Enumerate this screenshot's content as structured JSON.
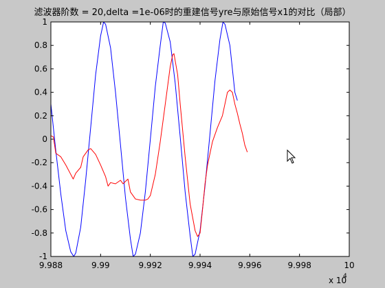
{
  "chart_data": {
    "type": "line",
    "title": "滤波器阶数 = 20,delta =1e-06时的重建信号yre与原始信号x1的对比（局部）",
    "xlabel": "",
    "ylabel": "",
    "xlim": [
      99880,
      100000
    ],
    "ylim": [
      -1,
      1
    ],
    "x_ticks": [
      99880,
      99900,
      99920,
      99940,
      99960,
      99980,
      100000
    ],
    "x_tick_labels": [
      "9.988",
      "9.99",
      "9.992",
      "9.994",
      "9.996",
      "9.998",
      "10"
    ],
    "x_exponent_label": "x 10",
    "x_exponent_power": "4",
    "y_ticks": [
      1,
      0.8,
      0.6,
      0.4,
      0.2,
      0,
      -0.2,
      -0.4,
      -0.6,
      -0.8,
      -1
    ],
    "y_tick_labels": [
      "1",
      "0.8",
      "0.6",
      "0.4",
      "0.2",
      "0",
      "-0.2",
      "-0.4",
      "-0.6",
      "-0.8",
      "-1"
    ],
    "grid": false,
    "series": [
      {
        "color": "#0000ff",
        "points": [
          [
            99880,
            0.3
          ],
          [
            99882,
            -0.1
          ],
          [
            99884,
            -0.47
          ],
          [
            99886,
            -0.78
          ],
          [
            99888,
            -0.96
          ],
          [
            99889.2,
            -1.0
          ],
          [
            99890,
            -0.97
          ],
          [
            99892,
            -0.75
          ],
          [
            99894,
            -0.35
          ],
          [
            99896,
            0.1
          ],
          [
            99898,
            0.55
          ],
          [
            99900,
            0.88
          ],
          [
            99901.2,
            1.0
          ],
          [
            99902,
            0.98
          ],
          [
            99904,
            0.78
          ],
          [
            99906,
            0.4
          ],
          [
            99908,
            -0.05
          ],
          [
            99910,
            -0.5
          ],
          [
            99912,
            -0.85
          ],
          [
            99913.1,
            -1.0
          ],
          [
            99914,
            -0.98
          ],
          [
            99916,
            -0.8
          ],
          [
            99918,
            -0.45
          ],
          [
            99920,
            0.0
          ],
          [
            99922,
            0.45
          ],
          [
            99924,
            0.8
          ],
          [
            99925.2,
            1.0
          ],
          [
            99926,
            0.99
          ],
          [
            99928,
            0.83
          ],
          [
            99930,
            0.48
          ],
          [
            99932,
            0.02
          ],
          [
            99934,
            -0.45
          ],
          [
            99936,
            -0.82
          ],
          [
            99937.1,
            -1.0
          ],
          [
            99938,
            -0.98
          ],
          [
            99940,
            -0.78
          ],
          [
            99942,
            -0.4
          ],
          [
            99944,
            0.05
          ],
          [
            99946,
            0.5
          ],
          [
            99948,
            0.85
          ],
          [
            99949.2,
            1.0
          ],
          [
            99950,
            0.98
          ],
          [
            99952,
            0.8
          ],
          [
            99954,
            0.4
          ],
          [
            99955,
            0.33
          ]
        ]
      },
      {
        "color": "#ff0000",
        "points": [
          [
            99880,
            0.03
          ],
          [
            99881,
            0.02
          ],
          [
            99882,
            -0.12
          ],
          [
            99884,
            -0.15
          ],
          [
            99886,
            -0.22
          ],
          [
            99888,
            -0.3
          ],
          [
            99889,
            -0.34
          ],
          [
            99890,
            -0.29
          ],
          [
            99892,
            -0.24
          ],
          [
            99893,
            -0.15
          ],
          [
            99895,
            -0.09
          ],
          [
            99896,
            -0.08
          ],
          [
            99898,
            -0.13
          ],
          [
            99900,
            -0.22
          ],
          [
            99902,
            -0.32
          ],
          [
            99903,
            -0.4
          ],
          [
            99904,
            -0.37
          ],
          [
            99906,
            -0.38
          ],
          [
            99908,
            -0.35
          ],
          [
            99909,
            -0.38
          ],
          [
            99911,
            -0.34
          ],
          [
            99912,
            -0.45
          ],
          [
            99914,
            -0.51
          ],
          [
            99916,
            -0.52
          ],
          [
            99918,
            -0.52
          ],
          [
            99919,
            -0.51
          ],
          [
            99920,
            -0.48
          ],
          [
            99922,
            -0.3
          ],
          [
            99924,
            -0.02
          ],
          [
            99926,
            0.3
          ],
          [
            99928,
            0.62
          ],
          [
            99929,
            0.72
          ],
          [
            99929.5,
            0.73
          ],
          [
            99931,
            0.55
          ],
          [
            99932,
            0.3
          ],
          [
            99934,
            -0.15
          ],
          [
            99936,
            -0.55
          ],
          [
            99938,
            -0.78
          ],
          [
            99939,
            -0.83
          ],
          [
            99940,
            -0.8
          ],
          [
            99941,
            -0.6
          ],
          [
            99942,
            -0.38
          ],
          [
            99943,
            -0.22
          ],
          [
            99945,
            -0.02
          ],
          [
            99947,
            0.1
          ],
          [
            99949,
            0.2
          ],
          [
            99951,
            0.4
          ],
          [
            99952,
            0.42
          ],
          [
            99953,
            0.4
          ],
          [
            99954,
            0.3
          ],
          [
            99955,
            0.22
          ],
          [
            99956,
            0.13
          ],
          [
            99957,
            0.05
          ],
          [
            99958,
            -0.05
          ],
          [
            99959,
            -0.11
          ]
        ]
      }
    ]
  }
}
